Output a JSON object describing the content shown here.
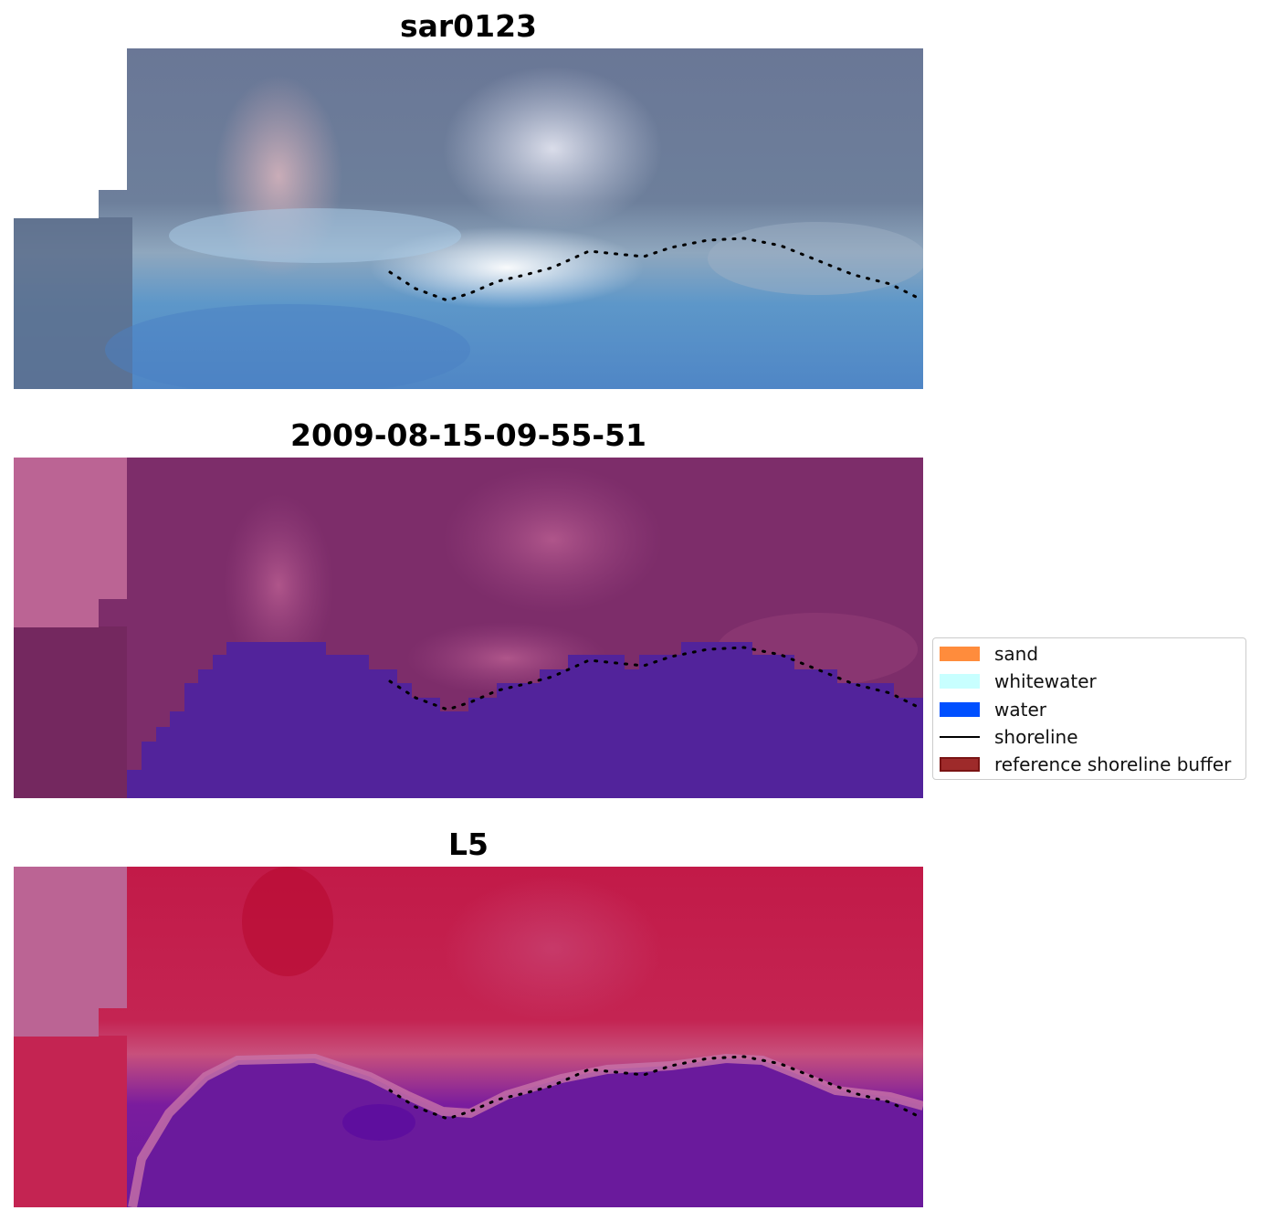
{
  "panels": [
    {
      "title": "sar0123"
    },
    {
      "title": "2009-08-15-09-55-51"
    },
    {
      "title": "L5"
    }
  ],
  "legend": {
    "entries": [
      {
        "label": "sand",
        "kind": "patch",
        "color": "#ff8c3c"
      },
      {
        "label": "whitewater",
        "kind": "patch",
        "color": "#c8ffff"
      },
      {
        "label": "water",
        "kind": "patch",
        "color": "#0050ff"
      },
      {
        "label": "shoreline",
        "kind": "line",
        "color": "#000000"
      },
      {
        "label": "reference shoreline buffer",
        "kind": "patch",
        "color": "#9e2a2a",
        "edge": "#7a1414"
      }
    ]
  },
  "colors": {
    "rgb_sky": "#5d6f8f",
    "rgb_water": "#4f8fcc",
    "class_land": "#7d2d6a",
    "class_water": "#52239b",
    "class_nodata": "#bb6494",
    "mndwi_land": "#c21a48",
    "mndwi_water": "#6a1a9c",
    "mndwi_nodata": "#bb6494"
  }
}
